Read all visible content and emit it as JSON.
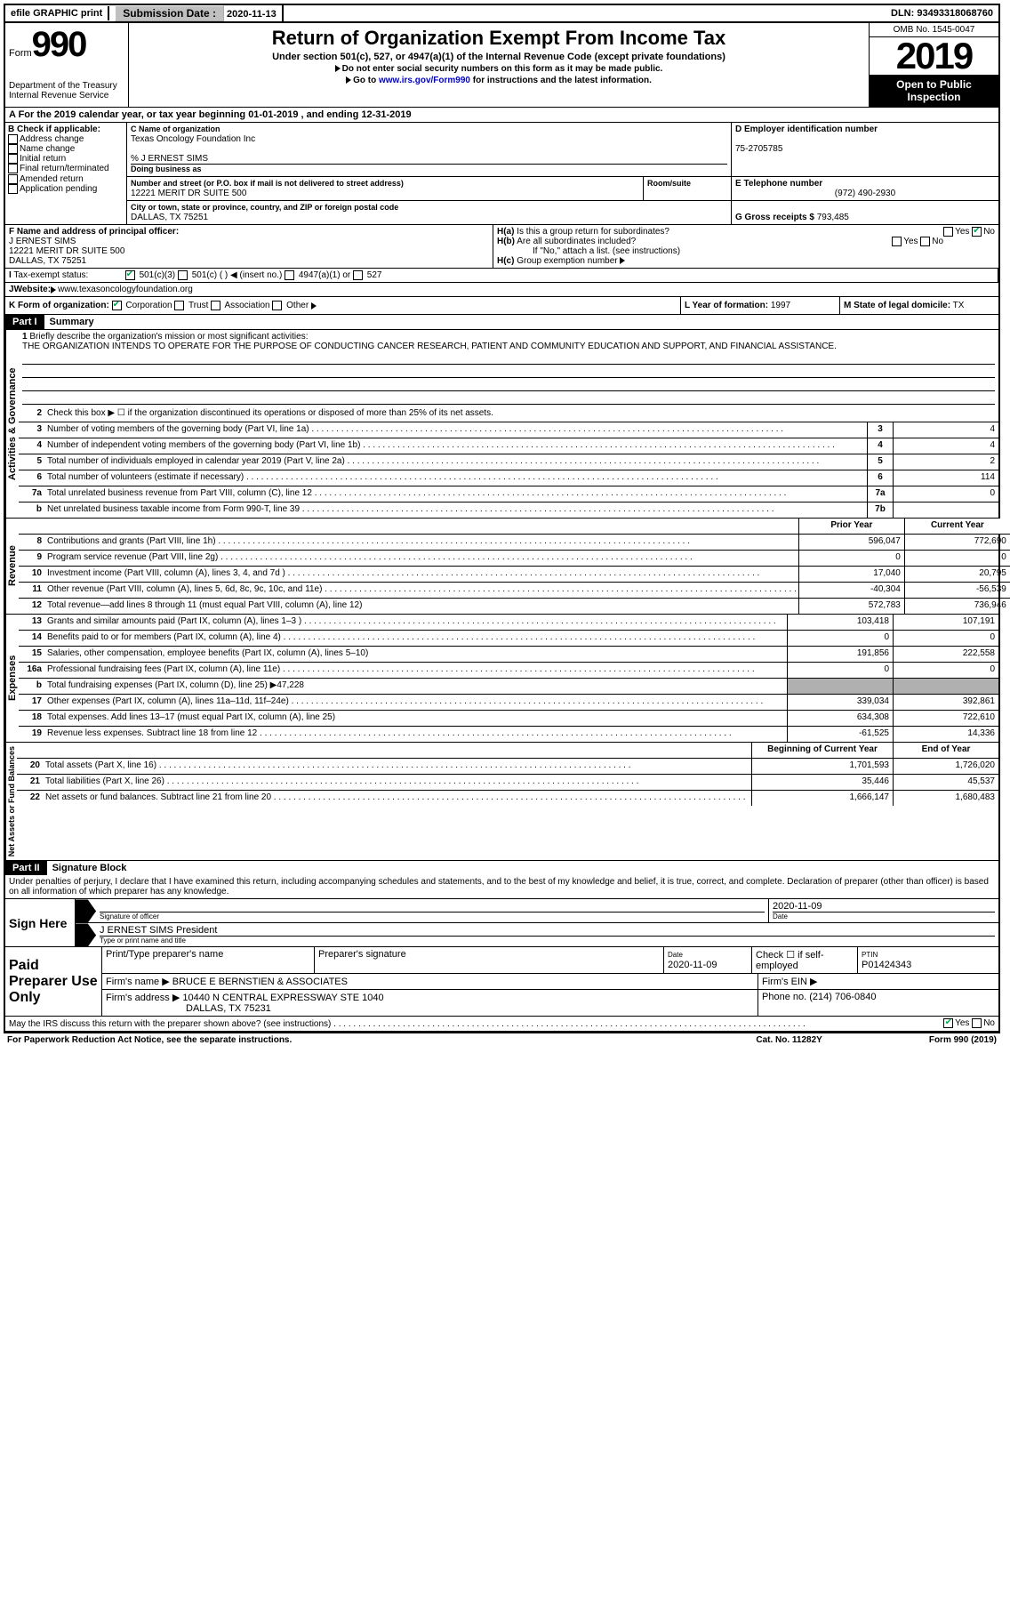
{
  "topbar": {
    "efile": "efile GRAPHIC print",
    "sub_label": "Submission Date :",
    "sub_date": "2020-11-13",
    "dln": "DLN: 93493318068760"
  },
  "header": {
    "form": "Form",
    "formnum": "990",
    "dept": "Department of the Treasury\nInternal Revenue Service",
    "title": "Return of Organization Exempt From Income Tax",
    "sub": "Under section 501(c), 527, or 4947(a)(1) of the Internal Revenue Code (except private foundations)",
    "note1": "Do not enter social security numbers on this form as it may be made public.",
    "note2_pre": "Go to ",
    "note2_link": "www.irs.gov/Form990",
    "note2_post": " for instructions and the latest information.",
    "omb": "OMB No. 1545-0047",
    "year": "2019",
    "inspect": "Open to Public Inspection"
  },
  "lineA": "A For the 2019 calendar year, or tax year beginning 01-01-2019   , and ending 12-31-2019",
  "B": {
    "lbl": "B Check if applicable:",
    "opts": [
      "Address change",
      "Name change",
      "Initial return",
      "Final return/terminated",
      "Amended return",
      "Application pending"
    ]
  },
  "C": {
    "name_lbl": "C Name of organization",
    "name": "Texas Oncology Foundation Inc",
    "care": "% J ERNEST SIMS",
    "dba_lbl": "Doing business as",
    "addr_lbl": "Number and street (or P.O. box if mail is not delivered to street address)",
    "room_lbl": "Room/suite",
    "addr": "12221 MERIT DR SUITE 500",
    "city_lbl": "City or town, state or province, country, and ZIP or foreign postal code",
    "city": "DALLAS, TX   75251"
  },
  "D": {
    "lbl": "D Employer identification number",
    "val": "75-2705785"
  },
  "E": {
    "lbl": "E Telephone number",
    "val": "(972) 490-2930"
  },
  "G": {
    "lbl": "G Gross receipts $",
    "val": "793,485"
  },
  "F": {
    "lbl": "F Name and address of principal officer:",
    "name": "J ERNEST SIMS",
    "addr": "12221 MERIT DR SUITE 500",
    "city": "DALLAS, TX   75251"
  },
  "H": {
    "a": "Is this a group return for subordinates?",
    "b": "Are all subordinates included?",
    "b_note": "If \"No,\" attach a list. (see instructions)",
    "c": "Group exemption number"
  },
  "I": {
    "lbl": "Tax-exempt status:",
    "o1": "501(c)(3)",
    "o2": "501(c) (   )",
    "o2b": "(insert no.)",
    "o3": "4947(a)(1) or",
    "o4": "527"
  },
  "J": {
    "lbl": "Website:",
    "val": "www.texasoncologyfoundation.org"
  },
  "K": {
    "lbl": "K Form of organization:",
    "o1": "Corporation",
    "o2": "Trust",
    "o3": "Association",
    "o4": "Other"
  },
  "L": {
    "lbl": "L Year of formation:",
    "val": "1997"
  },
  "M": {
    "lbl": "M State of legal domicile:",
    "val": "TX"
  },
  "partI": {
    "num": "Part I",
    "title": "Summary"
  },
  "p1": {
    "l1": "Briefly describe the organization's mission or most significant activities:",
    "l1txt": "THE ORGANIZATION INTENDS TO OPERATE FOR THE PURPOSE OF CONDUCTING CANCER RESEARCH, PATIENT AND COMMUNITY EDUCATION AND SUPPORT, AND FINANCIAL ASSISTANCE.",
    "l2": "Check this box ▶ ☐  if the organization discontinued its operations or disposed of more than 25% of its net assets.",
    "l3": "Number of voting members of the governing body (Part VI, line 1a)",
    "l4": "Number of independent voting members of the governing body (Part VI, line 1b)",
    "l5": "Total number of individuals employed in calendar year 2019 (Part V, line 2a)",
    "l6": "Total number of volunteers (estimate if necessary)",
    "l7a": "Total unrelated business revenue from Part VIII, column (C), line 12",
    "l7b": "Net unrelated business taxable income from Form 990-T, line 39",
    "v3": "4",
    "v4": "4",
    "v5": "2",
    "v6": "114",
    "v7a": "0",
    "v7b": ""
  },
  "tabs": {
    "act": "Activities & Governance",
    "rev": "Revenue",
    "exp": "Expenses",
    "net": "Net Assets or Fund Balances"
  },
  "hdr": {
    "prior": "Prior Year",
    "curr": "Current Year",
    "beg": "Beginning of Current Year",
    "end": "End of Year"
  },
  "rev": {
    "l8": "Contributions and grants (Part VIII, line 1h)",
    "l9": "Program service revenue (Part VIII, line 2g)",
    "l10": "Investment income (Part VIII, column (A), lines 3, 4, and 7d )",
    "l11": "Other revenue (Part VIII, column (A), lines 5, 6d, 8c, 9c, 10c, and 11e)",
    "l12": "Total revenue—add lines 8 through 11 (must equal Part VIII, column (A), line 12)",
    "p8": "596,047",
    "c8": "772,690",
    "p9": "0",
    "c9": "0",
    "p10": "17,040",
    "c10": "20,795",
    "p11": "-40,304",
    "c11": "-56,539",
    "p12": "572,783",
    "c12": "736,946"
  },
  "exp": {
    "l13": "Grants and similar amounts paid (Part IX, column (A), lines 1–3 )",
    "l14": "Benefits paid to or for members (Part IX, column (A), line 4)",
    "l15": "Salaries, other compensation, employee benefits (Part IX, column (A), lines 5–10)",
    "l16a": "Professional fundraising fees (Part IX, column (A), line 11e)",
    "l16b": "Total fundraising expenses (Part IX, column (D), line 25) ▶47,228",
    "l17": "Other expenses (Part IX, column (A), lines 11a–11d, 11f–24e)",
    "l18": "Total expenses. Add lines 13–17 (must equal Part IX, column (A), line 25)",
    "l19": "Revenue less expenses. Subtract line 18 from line 12",
    "p13": "103,418",
    "c13": "107,191",
    "p14": "0",
    "c14": "0",
    "p15": "191,856",
    "c15": "222,558",
    "p16a": "0",
    "c16a": "0",
    "p17": "339,034",
    "c17": "392,861",
    "p18": "634,308",
    "c18": "722,610",
    "p19": "-61,525",
    "c19": "14,336"
  },
  "net": {
    "l20": "Total assets (Part X, line 16)",
    "l21": "Total liabilities (Part X, line 26)",
    "l22": "Net assets or fund balances. Subtract line 21 from line 20",
    "b20": "1,701,593",
    "e20": "1,726,020",
    "b21": "35,446",
    "e21": "45,537",
    "b22": "1,666,147",
    "e22": "1,680,483"
  },
  "partII": {
    "num": "Part II",
    "title": "Signature Block"
  },
  "sig": {
    "decl": "Under penalties of perjury, I declare that I have examined this return, including accompanying schedules and statements, and to the best of my knowledge and belief, it is true, correct, and complete. Declaration of preparer (other than officer) is based on all information of which preparer has any knowledge.",
    "sign": "Sign Here",
    "sig_officer": "Signature of officer",
    "date_lbl": "Date",
    "date": "2020-11-09",
    "name": "J ERNEST SIMS President",
    "name_lbl": "Type or print name and title",
    "paid": "Paid Preparer Use Only",
    "p_name_lbl": "Print/Type preparer's name",
    "p_sig_lbl": "Preparer's signature",
    "p_date": "2020-11-09",
    "p_check": "Check ☐ if self-employed",
    "ptin_lbl": "PTIN",
    "ptin": "P01424343",
    "firm_lbl": "Firm's name    ▶",
    "firm": "BRUCE E BERNSTIEN & ASSOCIATES",
    "ein_lbl": "Firm's EIN ▶",
    "addr_lbl": "Firm's address ▶",
    "addr": "10440 N CENTRAL EXPRESSWAY STE 1040",
    "addr2": "DALLAS, TX   75231",
    "phone_lbl": "Phone no.",
    "phone": "(214) 706-0840",
    "discuss": "May the IRS discuss this return with the preparer shown above? (see instructions)"
  },
  "footer": {
    "l": "For Paperwork Reduction Act Notice, see the separate instructions.",
    "m": "Cat. No. 11282Y",
    "r": "Form 990 (2019)"
  },
  "yn": {
    "yes": "Yes",
    "no": "No"
  }
}
